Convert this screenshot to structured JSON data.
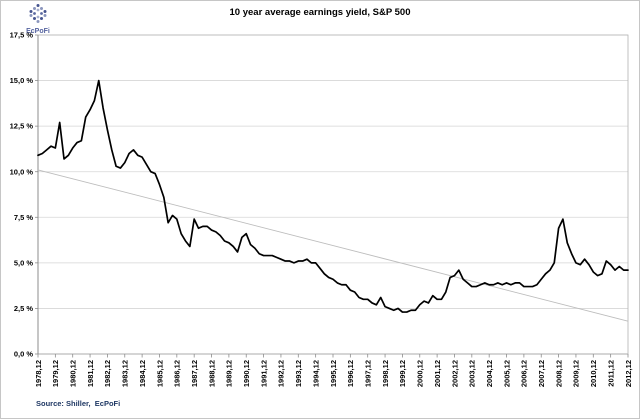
{
  "page": {
    "title": "10 year average earnings yield, S&P 500"
  },
  "logo": {
    "text": "EcPoFi"
  },
  "footer": {
    "source_text": "Source: Shiller,  EcPoFi"
  },
  "chart_data": {
    "type": "line",
    "title": "10 year average earnings yield, S&P 500",
    "xlabel": "",
    "ylabel": "",
    "ylim": [
      0,
      17.5
    ],
    "grid": true,
    "legend": "none",
    "y_ticks": [
      0,
      2.5,
      5,
      7.5,
      10,
      12.5,
      15,
      17.5
    ],
    "y_tick_labels": [
      "0,0 %",
      "2,5 %",
      "5,0 %",
      "7,5 %",
      "10,0 %",
      "12,5 %",
      "15,0 %",
      "17,5 %"
    ],
    "x_first": "1978,12",
    "x_last": "2012,12",
    "x_sampling": "quarterly",
    "x_tick_labels": [
      "1978,12",
      "1979,12",
      "1980,12",
      "1981,12",
      "1982,12",
      "1983,12",
      "1984,12",
      "1985,12",
      "1986,12",
      "1987,12",
      "1988,12",
      "1989,12",
      "1990,12",
      "1991,12",
      "1992,12",
      "1993,12",
      "1994,12",
      "1995,12",
      "1996,12",
      "1997,12",
      "1998,12",
      "1999,12",
      "2000,12",
      "2001,12",
      "2002,12",
      "2003,12",
      "2004,12",
      "2005,12",
      "2006,12",
      "2007,12",
      "2008,12",
      "2009,12",
      "2010,12",
      "2011,12",
      "2012,12"
    ],
    "series": [
      {
        "name": "10 year average earnings yield",
        "color": "#000000",
        "values": [
          10.9,
          11.0,
          11.2,
          11.4,
          11.3,
          12.7,
          10.7,
          10.9,
          11.3,
          11.6,
          11.7,
          13.0,
          13.4,
          13.9,
          15.0,
          13.5,
          12.3,
          11.2,
          10.3,
          10.2,
          10.5,
          11.0,
          11.2,
          10.9,
          10.8,
          10.4,
          10.0,
          9.9,
          9.3,
          8.6,
          7.2,
          7.6,
          7.4,
          6.6,
          6.2,
          5.9,
          7.4,
          6.9,
          7.0,
          7.0,
          6.8,
          6.7,
          6.5,
          6.2,
          6.1,
          5.9,
          5.6,
          6.4,
          6.6,
          6.0,
          5.8,
          5.5,
          5.4,
          5.4,
          5.4,
          5.3,
          5.2,
          5.1,
          5.1,
          5.0,
          5.1,
          5.1,
          5.2,
          5.0,
          5.0,
          4.7,
          4.4,
          4.2,
          4.1,
          3.9,
          3.8,
          3.8,
          3.5,
          3.4,
          3.1,
          3.0,
          3.0,
          2.8,
          2.7,
          3.1,
          2.6,
          2.5,
          2.4,
          2.5,
          2.3,
          2.3,
          2.4,
          2.4,
          2.7,
          2.9,
          2.8,
          3.2,
          3.0,
          3.0,
          3.4,
          4.2,
          4.3,
          4.6,
          4.1,
          3.9,
          3.7,
          3.7,
          3.8,
          3.9,
          3.8,
          3.8,
          3.9,
          3.8,
          3.9,
          3.8,
          3.9,
          3.9,
          3.7,
          3.7,
          3.7,
          3.8,
          4.1,
          4.4,
          4.6,
          5.0,
          6.9,
          7.4,
          6.1,
          5.5,
          5.0,
          4.9,
          5.2,
          4.9,
          4.5,
          4.3,
          4.4,
          5.1,
          4.9,
          4.6,
          4.8,
          4.6,
          4.6
        ]
      },
      {
        "name": "Linear trend",
        "color": "#bdbdbd",
        "type": "linear_trend",
        "endpoint_values": [
          10.1,
          1.8
        ]
      }
    ]
  }
}
